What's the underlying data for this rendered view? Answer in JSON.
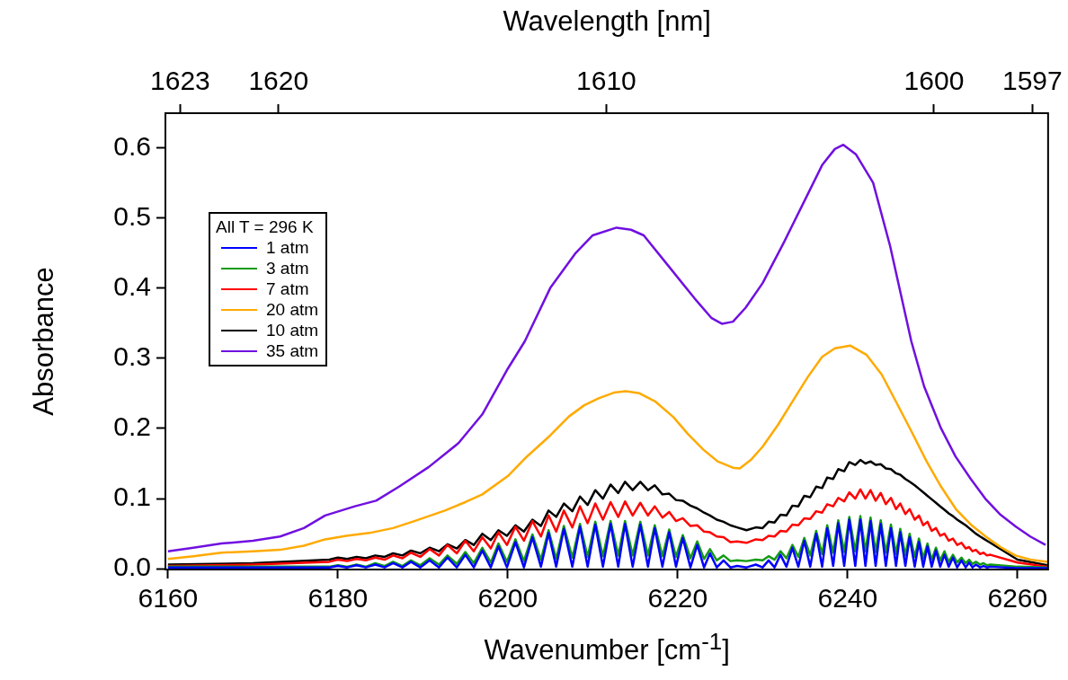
{
  "chart_data": {
    "type": "line",
    "xlabel": "Wavenumber [cm$^{-1}$]",
    "ylabel": "Absorbance",
    "x2label": "Wavelength [nm]",
    "legend_title": "All T = 296 K",
    "legend": "left",
    "grid": false,
    "xlim": [
      6159.7,
      6263.6
    ],
    "xticks": [
      6160,
      6180,
      6200,
      6220,
      6240,
      6260
    ],
    "x2lim": [
      1623.45,
      1596.52
    ],
    "x2ticks": [
      1623,
      1620,
      1610,
      1600,
      1597
    ],
    "ylim": [
      -0.001,
      0.649
    ],
    "yticks": [
      {
        "value": 0,
        "label": "0.0"
      },
      {
        "value": 0.1,
        "label": "0.1"
      },
      {
        "value": 0.2,
        "label": "0.2"
      },
      {
        "value": 0.3,
        "label": "0.3"
      },
      {
        "value": 0.4,
        "label": "0.4"
      },
      {
        "value": 0.5,
        "label": "0.5"
      },
      {
        "value": 0.6,
        "label": "0.6"
      }
    ],
    "x": [
      6160,
      6170,
      6179.0,
      6180.0,
      6181.1,
      6182.2,
      6183.3,
      6184.4,
      6185.5,
      6186.5,
      6187.6,
      6188.6,
      6189.7,
      6190.8,
      6191.9,
      6192.9,
      6194.0,
      6195.0,
      6196.0,
      6197.0,
      6198.0,
      6198.9,
      6199.9,
      6200.9,
      6201.9,
      6202.9,
      6203.9,
      6204.8,
      6205.7,
      6206.6,
      6207.6,
      6208.5,
      6209.4,
      6210.3,
      6211.2,
      6212.1,
      6213.0,
      6213.8,
      6214.7,
      6215.6,
      6216.5,
      6217.3,
      6218.2,
      6219.0,
      6219.8,
      6220.6,
      6221.5,
      6222.3,
      6223.1,
      6223.8,
      6224.6,
      6225.4,
      6226.2,
      6227.0,
      6228.1,
      6229.2,
      6230.0,
      6230.7,
      6231.4,
      6232.1,
      6232.8,
      6233.5,
      6234.2,
      6234.9,
      6235.6,
      6236.3,
      6237.0,
      6237.6,
      6238.3,
      6238.9,
      6239.6,
      6240.2,
      6240.9,
      6241.5,
      6242.1,
      6242.7,
      6243.3,
      6243.9,
      6244.5,
      6245.1,
      6245.7,
      6246.2,
      6246.8,
      6247.3,
      6247.9,
      6248.4,
      6248.9,
      6249.4,
      6249.9,
      6250.4,
      6250.9,
      6251.4,
      6251.9,
      6252.4,
      6252.9,
      6253.4,
      6253.9,
      6254.3,
      6254.7,
      6255.1,
      6255.6,
      6256.0,
      6256.4,
      6256.8,
      6260,
      6263.5
    ],
    "series": [
      {
        "name": "1 atm",
        "color": "#0000ff",
        "values": [
          0.002,
          0.002,
          0.002,
          0.004,
          0.002,
          0.005,
          0.002,
          0.006,
          0.002,
          0.008,
          0.002,
          0.01,
          0.002,
          0.012,
          0.002,
          0.016,
          0.002,
          0.02,
          0.002,
          0.026,
          0.002,
          0.032,
          0.002,
          0.038,
          0.002,
          0.045,
          0.003,
          0.051,
          0.003,
          0.057,
          0.003,
          0.06,
          0.003,
          0.063,
          0.003,
          0.064,
          0.003,
          0.064,
          0.003,
          0.063,
          0.003,
          0.058,
          0.003,
          0.052,
          0.003,
          0.044,
          0.002,
          0.034,
          0.002,
          0.022,
          0.002,
          0.012,
          0.002,
          0.004,
          0.002,
          0.006,
          0.002,
          0.012,
          0.002,
          0.02,
          0.003,
          0.03,
          0.003,
          0.04,
          0.003,
          0.05,
          0.003,
          0.058,
          0.004,
          0.065,
          0.004,
          0.07,
          0.004,
          0.07,
          0.004,
          0.068,
          0.004,
          0.064,
          0.004,
          0.058,
          0.004,
          0.052,
          0.004,
          0.045,
          0.003,
          0.038,
          0.003,
          0.032,
          0.003,
          0.026,
          0.003,
          0.02,
          0.003,
          0.016,
          0.002,
          0.012,
          0.002,
          0.009,
          0.002,
          0.006,
          0.002,
          0.004,
          0.002,
          0.003,
          0.001,
          0.001
        ]
      },
      {
        "name": "3 atm",
        "color": "#139a13",
        "values": [
          0.003,
          0.003,
          0.003,
          0.005,
          0.003,
          0.006,
          0.003,
          0.008,
          0.004,
          0.01,
          0.004,
          0.012,
          0.005,
          0.015,
          0.006,
          0.019,
          0.007,
          0.024,
          0.008,
          0.03,
          0.009,
          0.036,
          0.01,
          0.042,
          0.011,
          0.049,
          0.013,
          0.055,
          0.014,
          0.061,
          0.016,
          0.064,
          0.017,
          0.067,
          0.018,
          0.068,
          0.019,
          0.068,
          0.019,
          0.067,
          0.019,
          0.062,
          0.018,
          0.056,
          0.017,
          0.048,
          0.015,
          0.039,
          0.014,
          0.028,
          0.012,
          0.019,
          0.011,
          0.012,
          0.011,
          0.013,
          0.012,
          0.018,
          0.013,
          0.025,
          0.015,
          0.034,
          0.017,
          0.044,
          0.019,
          0.054,
          0.021,
          0.062,
          0.023,
          0.069,
          0.024,
          0.074,
          0.025,
          0.075,
          0.025,
          0.073,
          0.024,
          0.069,
          0.023,
          0.063,
          0.021,
          0.057,
          0.019,
          0.05,
          0.017,
          0.043,
          0.015,
          0.036,
          0.013,
          0.03,
          0.012,
          0.025,
          0.01,
          0.02,
          0.009,
          0.016,
          0.008,
          0.013,
          0.007,
          0.01,
          0.006,
          0.008,
          0.005,
          0.006,
          0.003,
          0.002
        ]
      },
      {
        "name": "7 atm",
        "color": "#ff0000",
        "values": [
          0.004,
          0.006,
          0.01,
          0.013,
          0.011,
          0.014,
          0.012,
          0.016,
          0.013,
          0.019,
          0.015,
          0.023,
          0.017,
          0.028,
          0.019,
          0.034,
          0.022,
          0.04,
          0.025,
          0.045,
          0.029,
          0.052,
          0.034,
          0.06,
          0.04,
          0.068,
          0.046,
          0.076,
          0.053,
          0.083,
          0.059,
          0.089,
          0.065,
          0.093,
          0.07,
          0.095,
          0.074,
          0.096,
          0.076,
          0.094,
          0.076,
          0.089,
          0.073,
          0.081,
          0.068,
          0.072,
          0.061,
          0.062,
          0.053,
          0.052,
          0.046,
          0.045,
          0.038,
          0.039,
          0.037,
          0.042,
          0.041,
          0.047,
          0.046,
          0.054,
          0.053,
          0.063,
          0.062,
          0.072,
          0.071,
          0.082,
          0.08,
          0.092,
          0.089,
          0.101,
          0.096,
          0.109,
          0.1,
          0.113,
          0.1,
          0.112,
          0.097,
          0.108,
          0.092,
          0.101,
          0.085,
          0.093,
          0.078,
          0.085,
          0.07,
          0.076,
          0.062,
          0.067,
          0.054,
          0.058,
          0.047,
          0.05,
          0.04,
          0.043,
          0.034,
          0.037,
          0.029,
          0.031,
          0.025,
          0.027,
          0.021,
          0.023,
          0.019,
          0.02,
          0.009,
          0.003
        ]
      },
      {
        "name": "20 atm",
        "color": "#ffaa00",
        "x": [
          6160,
          6163,
          6166.3,
          6170,
          6173.2,
          6176,
          6178.5,
          6181,
          6183.7,
          6186.5,
          6189,
          6192.6,
          6195,
          6197,
          6200,
          6202,
          6205,
          6207.2,
          6209,
          6210.7,
          6212.5,
          6213.9,
          6215.5,
          6217.4,
          6219.5,
          6221.2,
          6223,
          6224.7,
          6226.5,
          6227.3,
          6228.6,
          6230,
          6231.8,
          6233.5,
          6235.3,
          6237,
          6238.5,
          6240.3,
          6242.2,
          6244,
          6245.7,
          6247.5,
          6249.3,
          6251,
          6252.75,
          6254.5,
          6256.25,
          6258,
          6259.75,
          6261.5,
          6263.5
        ],
        "values": [
          0.014,
          0.018,
          0.023,
          0.025,
          0.027,
          0.033,
          0.042,
          0.047,
          0.051,
          0.058,
          0.068,
          0.083,
          0.095,
          0.106,
          0.132,
          0.157,
          0.19,
          0.217,
          0.233,
          0.243,
          0.251,
          0.253,
          0.25,
          0.238,
          0.216,
          0.192,
          0.17,
          0.153,
          0.144,
          0.143,
          0.155,
          0.174,
          0.205,
          0.238,
          0.273,
          0.302,
          0.314,
          0.318,
          0.305,
          0.277,
          0.238,
          0.196,
          0.153,
          0.117,
          0.085,
          0.063,
          0.046,
          0.031,
          0.019,
          0.013,
          0.01
        ]
      },
      {
        "name": "10 atm",
        "color": "#000000",
        "values": [
          0.006,
          0.008,
          0.013,
          0.016,
          0.014,
          0.017,
          0.015,
          0.019,
          0.017,
          0.022,
          0.019,
          0.026,
          0.022,
          0.03,
          0.025,
          0.035,
          0.029,
          0.041,
          0.034,
          0.05,
          0.041,
          0.055,
          0.047,
          0.062,
          0.053,
          0.07,
          0.061,
          0.083,
          0.074,
          0.093,
          0.082,
          0.103,
          0.091,
          0.112,
          0.1,
          0.12,
          0.108,
          0.124,
          0.112,
          0.124,
          0.112,
          0.119,
          0.106,
          0.107,
          0.098,
          0.097,
          0.09,
          0.086,
          0.08,
          0.076,
          0.07,
          0.067,
          0.062,
          0.059,
          0.055,
          0.059,
          0.058,
          0.067,
          0.066,
          0.077,
          0.076,
          0.09,
          0.089,
          0.104,
          0.102,
          0.117,
          0.115,
          0.13,
          0.128,
          0.142,
          0.139,
          0.152,
          0.148,
          0.155,
          0.15,
          0.153,
          0.148,
          0.149,
          0.143,
          0.142,
          0.136,
          0.134,
          0.128,
          0.124,
          0.119,
          0.114,
          0.109,
          0.104,
          0.099,
          0.094,
          0.089,
          0.084,
          0.079,
          0.075,
          0.07,
          0.066,
          0.062,
          0.058,
          0.054,
          0.05,
          0.046,
          0.043,
          0.04,
          0.037,
          0.013,
          0.005
        ]
      },
      {
        "name": "35 atm",
        "color": "#7010e0",
        "x": [
          6160,
          6163,
          6166.3,
          6170,
          6173.2,
          6176,
          6178.5,
          6182,
          6184.5,
          6187.2,
          6190.7,
          6194.2,
          6197,
          6200,
          6202,
          6205,
          6208,
          6210,
          6212.8,
          6214.5,
          6216,
          6219,
          6222,
          6224,
          6225.2,
          6226.5,
          6228,
          6230,
          6232.5,
          6235,
          6237,
          6238.5,
          6239.5,
          6241,
          6243,
          6245,
          6247.5,
          6249,
          6251,
          6252.7,
          6254.5,
          6256.2,
          6258,
          6259.8,
          6261.5,
          6263.3
        ],
        "values": [
          0.025,
          0.03,
          0.036,
          0.04,
          0.046,
          0.058,
          0.076,
          0.089,
          0.097,
          0.117,
          0.145,
          0.179,
          0.22,
          0.285,
          0.324,
          0.4,
          0.45,
          0.475,
          0.486,
          0.483,
          0.475,
          0.43,
          0.385,
          0.357,
          0.349,
          0.352,
          0.372,
          0.407,
          0.465,
          0.526,
          0.575,
          0.598,
          0.604,
          0.59,
          0.55,
          0.46,
          0.324,
          0.26,
          0.2,
          0.16,
          0.128,
          0.1,
          0.077,
          0.06,
          0.046,
          0.034
        ]
      }
    ]
  }
}
